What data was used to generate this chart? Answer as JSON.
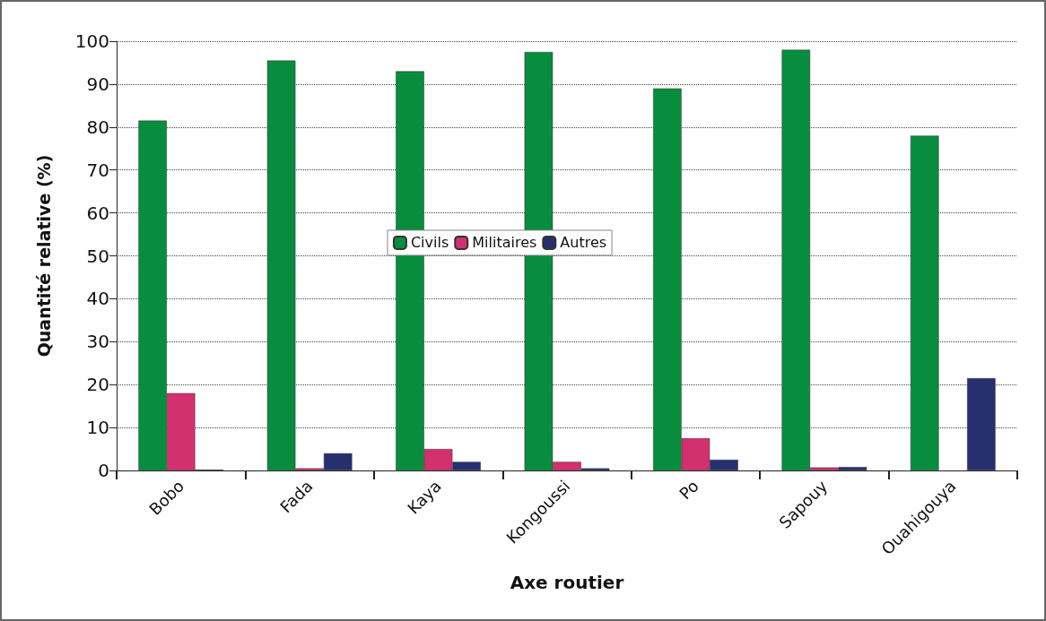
{
  "chart_data": {
    "type": "bar",
    "xlabel": "Axe routier",
    "ylabel": "Quantité relative (%)",
    "categories": [
      "Bobo",
      "Fada",
      "Kaya",
      "Kongoussi",
      "Po",
      "Sapouy",
      "Ouahigouya"
    ],
    "series": [
      {
        "name": "Civils",
        "color": "#088c3e",
        "values": [
          81.5,
          95.5,
          93,
          97.5,
          89,
          98,
          78
        ]
      },
      {
        "name": "Militaires",
        "color": "#d2306e",
        "values": [
          18,
          0.5,
          5,
          2,
          7.5,
          0.7,
          null
        ]
      },
      {
        "name": "Autres",
        "color": "#27306e",
        "values": [
          0.2,
          4,
          2,
          0.5,
          2.5,
          0.8,
          21.5
        ]
      }
    ],
    "ylim": [
      0,
      100
    ],
    "yticks": [
      0,
      10,
      20,
      30,
      40,
      50,
      60,
      70,
      80,
      90,
      100
    ],
    "grid": "y",
    "legend": "center"
  }
}
